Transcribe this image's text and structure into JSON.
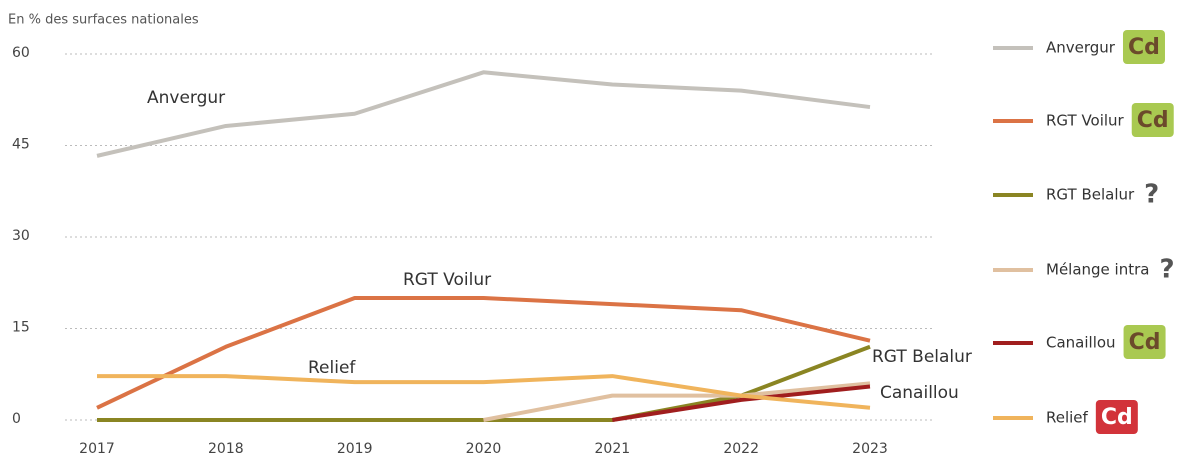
{
  "chart_data": {
    "type": "line",
    "subtitle": "En % des surfaces nationales",
    "categories": [
      "2017",
      "2018",
      "2019",
      "2020",
      "2021",
      "2022",
      "2023"
    ],
    "ylim": [
      0,
      60
    ],
    "yticks": [
      0,
      15,
      30,
      45,
      60
    ],
    "grid": true,
    "series": [
      {
        "name": "Anvergur",
        "color": "#c4c1bb",
        "values": [
          43.3,
          48.2,
          50.2,
          57,
          55,
          54,
          51.3
        ],
        "badge": "Cd",
        "badge_color": "#a9c951",
        "badge_text_color": "#6b4a2b"
      },
      {
        "name": "RGT Voilur",
        "color": "#db7345",
        "values": [
          2,
          12,
          20,
          20,
          19,
          18,
          13
        ],
        "badge": "Cd",
        "badge_color": "#a9c951",
        "badge_text_color": "#6b4a2b"
      },
      {
        "name": "RGT Belalur",
        "color": "#8a8523",
        "values": [
          0,
          0,
          0,
          0,
          0,
          4,
          12
        ],
        "badge": "?",
        "badge_text_color": "#555555"
      },
      {
        "name": "Mélange intra",
        "color": "#e0c0a0",
        "values": [
          null,
          null,
          null,
          0,
          4,
          4,
          6
        ],
        "badge": "?",
        "badge_text_color": "#555555"
      },
      {
        "name": "Canaillou",
        "color": "#a01e1e",
        "values": [
          null,
          null,
          null,
          null,
          0,
          3.3,
          5.5
        ],
        "badge": "Cd",
        "badge_color": "#a9c951",
        "badge_text_color": "#6b4a2b"
      },
      {
        "name": "Relief",
        "color": "#f0b45c",
        "values": [
          7.2,
          7.2,
          6.2,
          6.2,
          7.2,
          4,
          2
        ],
        "badge": "Cd",
        "badge_color": "#d2333a",
        "badge_text_color": "#ffffff"
      }
    ],
    "annotations": [
      "Anvergur",
      "RGT Voilur",
      "Relief",
      "RGT Belalur",
      "Canaillou"
    ]
  }
}
